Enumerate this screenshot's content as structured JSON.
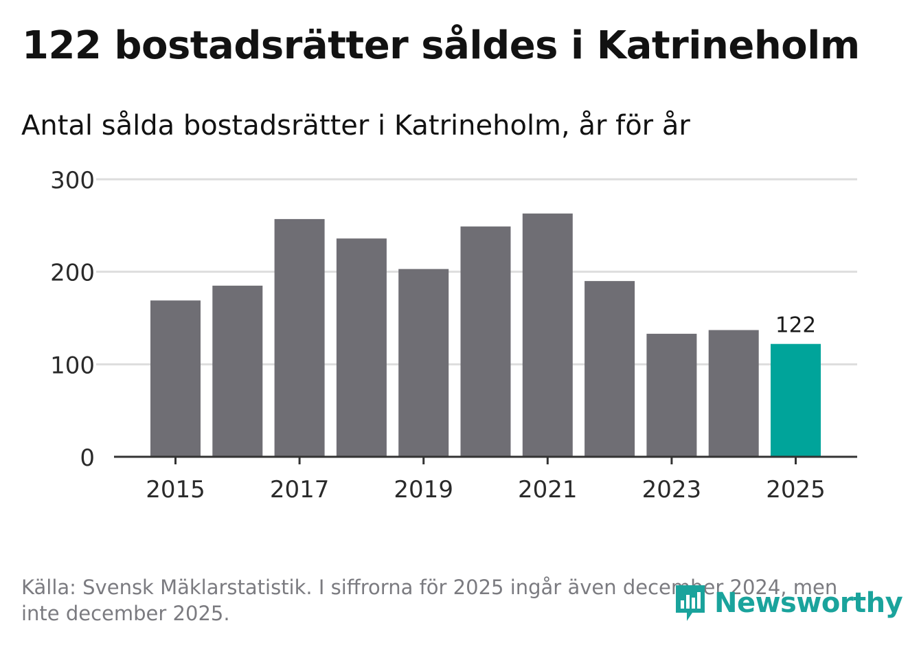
{
  "title": "122 bostadsrätter såldes i Katrineholm",
  "subtitle": "Antal sålda bostadsrätter i Katrineholm, år för år",
  "source": "Källa: Svensk Mäklarstatistik. I siffrorna för 2025 ingår även december 2024, men inte december 2025.",
  "logo": {
    "text": "Newsworthy",
    "icon": "bar-chart-logo-icon"
  },
  "colors": {
    "bar": "#6f6e74",
    "highlight": "#00a49a",
    "grid": "#dddddd",
    "axis": "#333333",
    "text": "#2a2a2a",
    "logo": "#1aa39c"
  },
  "chart_data": {
    "type": "bar",
    "title": "Antal sålda bostadsrätter i Katrineholm, år för år",
    "xlabel": "",
    "ylabel": "",
    "categories": [
      "2015",
      "2016",
      "2017",
      "2018",
      "2019",
      "2020",
      "2021",
      "2022",
      "2023",
      "2024",
      "2025"
    ],
    "values": [
      169,
      185,
      257,
      236,
      203,
      249,
      263,
      190,
      133,
      137,
      122
    ],
    "ylim": [
      0,
      300
    ],
    "yticks": [
      0,
      100,
      200,
      300
    ],
    "xticks": [
      "2015",
      "2017",
      "2019",
      "2021",
      "2023",
      "2025"
    ],
    "highlight_index": 10,
    "data_labels": [
      {
        "index": 10,
        "text": "122"
      }
    ],
    "grid": true
  }
}
